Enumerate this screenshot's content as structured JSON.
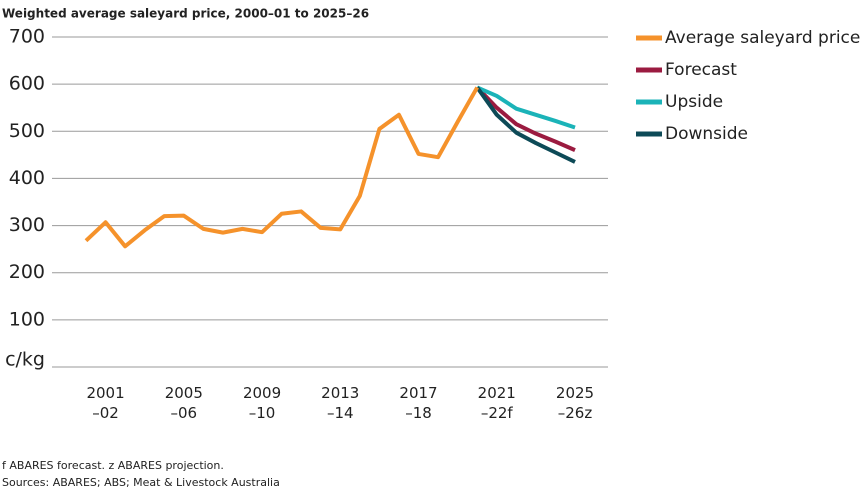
{
  "chart_data": {
    "type": "line",
    "title": "Weighted average saleyard price, 2000–01 to 2025–26",
    "y_label": "c/kg",
    "notes": [
      "f ABARES forecast. z ABARES projection.",
      "Sources: ABARES; ABS; Meat & Livestock Australia"
    ],
    "categories": [
      null,
      "2001 –02",
      null,
      null,
      null,
      "2005 –06",
      null,
      null,
      null,
      "2009 –10",
      null,
      null,
      null,
      "2013 –14",
      null,
      null,
      null,
      "2017 –18",
      null,
      null,
      null,
      "2021 –22f",
      null,
      null,
      null,
      "2025 –26z"
    ],
    "ylim": [
      0,
      700
    ],
    "yticks": [
      100,
      200,
      300,
      400,
      500,
      600,
      700
    ],
    "grid": true,
    "legend": "top-right",
    "series": [
      {
        "name": "Average saleyard price",
        "color": "#f5922b",
        "values": [
          268,
          307,
          256,
          290,
          320,
          321,
          293,
          285,
          293,
          286,
          325,
          330,
          295,
          292,
          363,
          505,
          535,
          452,
          445,
          520,
          593,
          null,
          null,
          null,
          null,
          null
        ]
      },
      {
        "name": "Forecast",
        "color": "#9b1b40",
        "values": [
          null,
          null,
          null,
          null,
          null,
          null,
          null,
          null,
          null,
          null,
          null,
          null,
          null,
          null,
          null,
          null,
          null,
          null,
          null,
          null,
          593,
          550,
          515,
          495,
          478,
          460
        ]
      },
      {
        "name": "Upside",
        "color": "#1bb3b8",
        "values": [
          null,
          null,
          null,
          null,
          null,
          null,
          null,
          null,
          null,
          null,
          null,
          null,
          null,
          null,
          null,
          null,
          null,
          null,
          null,
          null,
          593,
          575,
          548,
          535,
          522,
          508
        ]
      },
      {
        "name": "Downside",
        "color": "#0d4a57",
        "values": [
          null,
          null,
          null,
          null,
          null,
          null,
          null,
          null,
          null,
          null,
          null,
          null,
          null,
          null,
          null,
          null,
          null,
          null,
          null,
          null,
          593,
          535,
          497,
          475,
          455,
          435
        ]
      }
    ]
  }
}
